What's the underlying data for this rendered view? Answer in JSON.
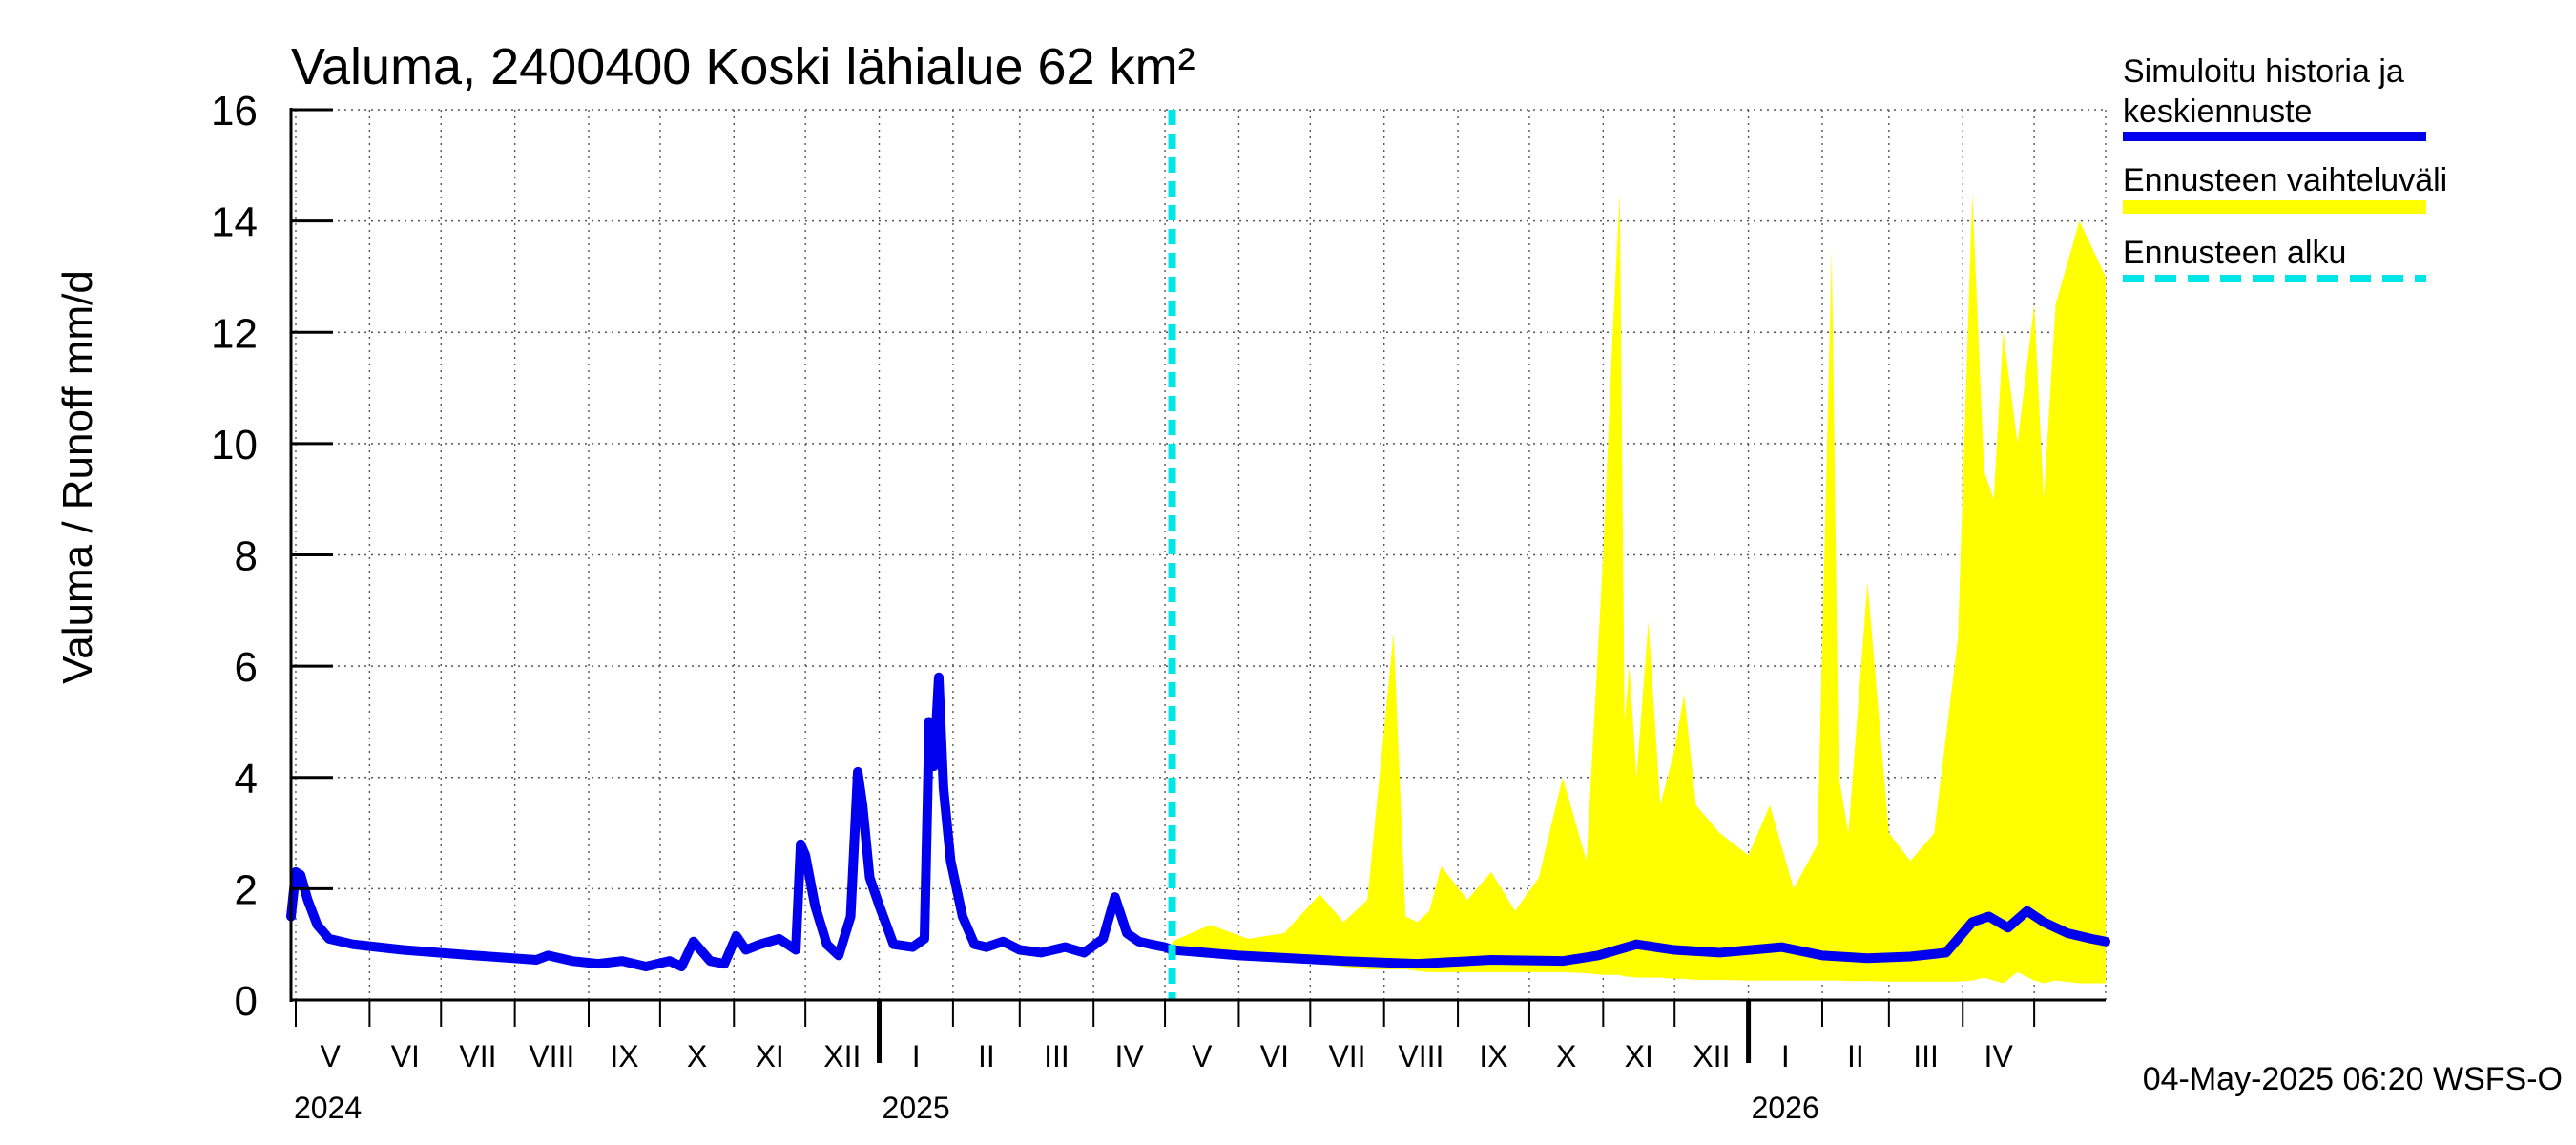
{
  "chart_data": {
    "type": "area",
    "title": "Valuma, 2400400 Koski lähialue 62 km²",
    "ylabel": "Valuma / Runoff    mm/d",
    "ylim": [
      0,
      16
    ],
    "yticks": [
      "0",
      "2",
      "4",
      "6",
      "8",
      "10",
      "12",
      "14",
      "16"
    ],
    "x_range": [
      "2024-04-29",
      "2026-05-31"
    ],
    "grid": true,
    "legend_position": "right",
    "months": [
      "V",
      "VI",
      "VII",
      "VIII",
      "IX",
      "X",
      "XI",
      "XII",
      "I",
      "II",
      "III",
      "IV",
      "V",
      "VI",
      "VII",
      "VIII",
      "IX",
      "X",
      "XI",
      "XII",
      "I",
      "II",
      "III",
      "IV"
    ],
    "years": [
      "2024",
      "2025",
      "2026"
    ],
    "forecast_start": "2025-05-04",
    "colors": {
      "history": "#0000ee",
      "range": "#ffff00",
      "forecast_start": "#00e5e5"
    },
    "series": [
      {
        "name": "Simuloitu historia ja keskiennuste",
        "x": [
          "2024-04-29",
          "2024-05-01",
          "2024-05-03",
          "2024-05-06",
          "2024-05-10",
          "2024-05-15",
          "2024-05-25",
          "2024-06-15",
          "2024-07-15",
          "2024-08-10",
          "2024-08-15",
          "2024-08-25",
          "2024-09-05",
          "2024-09-15",
          "2024-09-25",
          "2024-10-05",
          "2024-10-10",
          "2024-10-15",
          "2024-10-22",
          "2024-10-28",
          "2024-11-02",
          "2024-11-06",
          "2024-11-12",
          "2024-11-20",
          "2024-11-27",
          "2024-11-29",
          "2024-12-01",
          "2024-12-05",
          "2024-12-10",
          "2024-12-15",
          "2024-12-20",
          "2024-12-23",
          "2024-12-25",
          "2024-12-28",
          "2025-01-01",
          "2025-01-07",
          "2025-01-15",
          "2025-01-20",
          "2025-01-22",
          "2025-01-24",
          "2025-01-26",
          "2025-01-28",
          "2025-01-31",
          "2025-02-05",
          "2025-02-10",
          "2025-02-15",
          "2025-02-22",
          "2025-03-01",
          "2025-03-10",
          "2025-03-20",
          "2025-03-28",
          "2025-04-05",
          "2025-04-10",
          "2025-04-15",
          "2025-04-20",
          "2025-04-25",
          "2025-05-01",
          "2025-05-04",
          "2025-06-01",
          "2025-07-15",
          "2025-08-15",
          "2025-09-15",
          "2025-10-15",
          "2025-10-30",
          "2025-11-15",
          "2025-12-01",
          "2025-12-20",
          "2026-01-15",
          "2026-02-01",
          "2026-02-20",
          "2026-03-10",
          "2026-03-25",
          "2026-04-05",
          "2026-04-12",
          "2026-04-20",
          "2026-04-28",
          "2026-05-05",
          "2026-05-15",
          "2026-05-25",
          "2026-05-31"
        ],
        "values": [
          1.5,
          2.3,
          2.25,
          1.8,
          1.35,
          1.1,
          1.0,
          0.9,
          0.8,
          0.72,
          0.8,
          0.7,
          0.65,
          0.7,
          0.6,
          0.7,
          0.6,
          1.05,
          0.7,
          0.65,
          1.15,
          0.9,
          1.0,
          1.1,
          0.9,
          2.8,
          2.6,
          1.7,
          1.0,
          0.8,
          1.5,
          4.1,
          3.5,
          2.2,
          1.7,
          1.0,
          0.95,
          1.1,
          5.0,
          4.2,
          5.8,
          3.8,
          2.5,
          1.5,
          1.0,
          0.95,
          1.05,
          0.9,
          0.85,
          0.95,
          0.85,
          1.1,
          1.85,
          1.2,
          1.05,
          1.0,
          0.95,
          0.9,
          0.8,
          0.7,
          0.65,
          0.72,
          0.7,
          0.8,
          1.0,
          0.9,
          0.85,
          0.95,
          0.8,
          0.75,
          0.78,
          0.85,
          1.4,
          1.5,
          1.3,
          1.6,
          1.4,
          1.2,
          1.1,
          1.05
        ]
      },
      {
        "name": "Ennusteen vaihteluväli",
        "x": [
          "2025-05-04",
          "2025-05-20",
          "2025-06-05",
          "2025-06-20",
          "2025-07-05",
          "2025-07-15",
          "2025-07-25",
          "2025-08-05",
          "2025-08-10",
          "2025-08-15",
          "2025-08-20",
          "2025-08-25",
          "2025-09-05",
          "2025-09-15",
          "2025-09-25",
          "2025-10-05",
          "2025-10-15",
          "2025-10-25",
          "2025-11-01",
          "2025-11-05",
          "2025-11-08",
          "2025-11-10",
          "2025-11-12",
          "2025-11-15",
          "2025-11-20",
          "2025-11-25",
          "2025-12-01",
          "2025-12-05",
          "2025-12-10",
          "2025-12-20",
          "2026-01-01",
          "2026-01-10",
          "2026-01-20",
          "2026-01-30",
          "2026-02-05",
          "2026-02-08",
          "2026-02-12",
          "2026-02-20",
          "2026-03-01",
          "2026-03-10",
          "2026-03-20",
          "2026-03-30",
          "2026-04-05",
          "2026-04-10",
          "2026-04-14",
          "2026-04-18",
          "2026-04-24",
          "2026-05-01",
          "2026-05-05",
          "2026-05-10",
          "2026-05-20",
          "2026-05-31"
        ],
        "upper": [
          1.05,
          1.35,
          1.1,
          1.2,
          1.9,
          1.4,
          1.8,
          6.6,
          1.5,
          1.4,
          1.6,
          2.4,
          1.8,
          2.3,
          1.6,
          2.2,
          4.0,
          2.5,
          8.0,
          12.0,
          14.5,
          5.0,
          6.0,
          4.0,
          6.8,
          3.5,
          4.5,
          5.5,
          3.5,
          3.0,
          2.6,
          3.5,
          2.0,
          2.8,
          13.5,
          4.0,
          3.0,
          7.5,
          3.0,
          2.5,
          3.0,
          6.5,
          14.5,
          9.5,
          9.0,
          12.0,
          10.0,
          12.5,
          9.0,
          12.5,
          14.0,
          13.0
        ],
        "lower": [
          0.85,
          0.8,
          0.75,
          0.7,
          0.65,
          0.6,
          0.55,
          0.55,
          0.55,
          0.52,
          0.5,
          0.5,
          0.5,
          0.5,
          0.5,
          0.5,
          0.5,
          0.48,
          0.45,
          0.45,
          0.45,
          0.42,
          0.42,
          0.4,
          0.4,
          0.4,
          0.38,
          0.38,
          0.36,
          0.36,
          0.35,
          0.35,
          0.35,
          0.35,
          0.35,
          0.35,
          0.34,
          0.34,
          0.33,
          0.33,
          0.33,
          0.33,
          0.35,
          0.4,
          0.35,
          0.3,
          0.5,
          0.35,
          0.3,
          0.35,
          0.3,
          0.3
        ]
      },
      {
        "name": "Ennusteen alku",
        "x": [
          "2025-05-04",
          "2025-05-04"
        ],
        "values": [
          0,
          16
        ]
      }
    ]
  },
  "footer": "04-May-2025 06:20 WSFS-O"
}
